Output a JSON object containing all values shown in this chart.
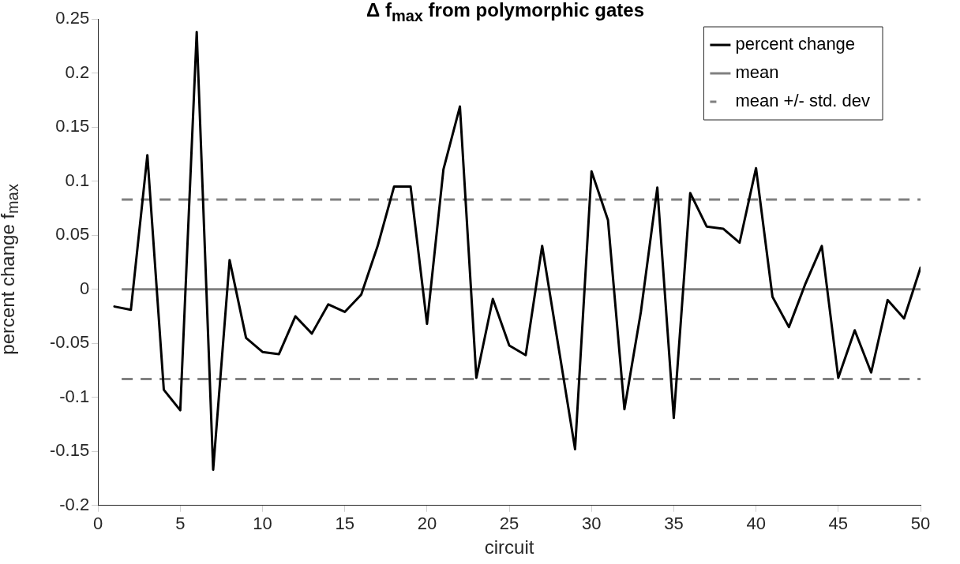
{
  "chart_data": {
    "type": "line",
    "title": "Δ f$_{max}$ from polymorphic gates",
    "xlabel": "circuit",
    "ylabel": "percent change f$_{max}$",
    "x": [
      1,
      2,
      3,
      4,
      5,
      6,
      7,
      8,
      9,
      10,
      11,
      12,
      13,
      14,
      15,
      16,
      17,
      18,
      19,
      20,
      21,
      22,
      23,
      24,
      25,
      26,
      27,
      28,
      29,
      30,
      31,
      32,
      33,
      34,
      35,
      36,
      37,
      38,
      39,
      40,
      41,
      42,
      43,
      44,
      45,
      46,
      47,
      48,
      49,
      50
    ],
    "series": [
      {
        "name": "percent change",
        "color": "#000000",
        "values": [
          -0.016,
          -0.019,
          0.124,
          -0.093,
          -0.112,
          0.238,
          -0.167,
          0.027,
          -0.045,
          -0.058,
          -0.06,
          -0.025,
          -0.041,
          -0.014,
          -0.021,
          -0.005,
          0.04,
          0.095,
          0.095,
          -0.032,
          0.111,
          0.169,
          -0.082,
          -0.009,
          -0.052,
          -0.061,
          0.04,
          -0.054,
          -0.148,
          0.109,
          0.064,
          -0.111,
          -0.021,
          0.094,
          -0.119,
          0.089,
          0.058,
          0.056,
          0.043,
          0.112,
          -0.007,
          -0.035,
          0.005,
          0.04,
          -0.082,
          -0.038,
          -0.077,
          -0.01,
          -0.027,
          0.02
        ]
      }
    ],
    "ref_lines": [
      {
        "axis": "y",
        "value": 0,
        "label": "mean",
        "color": "#808080",
        "line_style": "solid"
      },
      {
        "axis": "y",
        "value": 0.083,
        "label": "mean +/- std. dev",
        "color": "#808080",
        "line_style": "dashed"
      },
      {
        "axis": "y",
        "value": -0.083,
        "color": "#808080",
        "line_style": "dashed"
      }
    ],
    "xlim": [
      0,
      50
    ],
    "xticks": [
      0,
      5,
      10,
      15,
      20,
      25,
      30,
      35,
      40,
      45,
      50
    ],
    "ylim": [
      -0.2,
      0.25
    ],
    "yticks": [
      -0.2,
      -0.15,
      -0.1,
      -0.05,
      0,
      0.05,
      0.1,
      0.15,
      0.2,
      0.25
    ],
    "grid": false,
    "legend": "top right",
    "marker": "none",
    "line_style": "solid"
  }
}
